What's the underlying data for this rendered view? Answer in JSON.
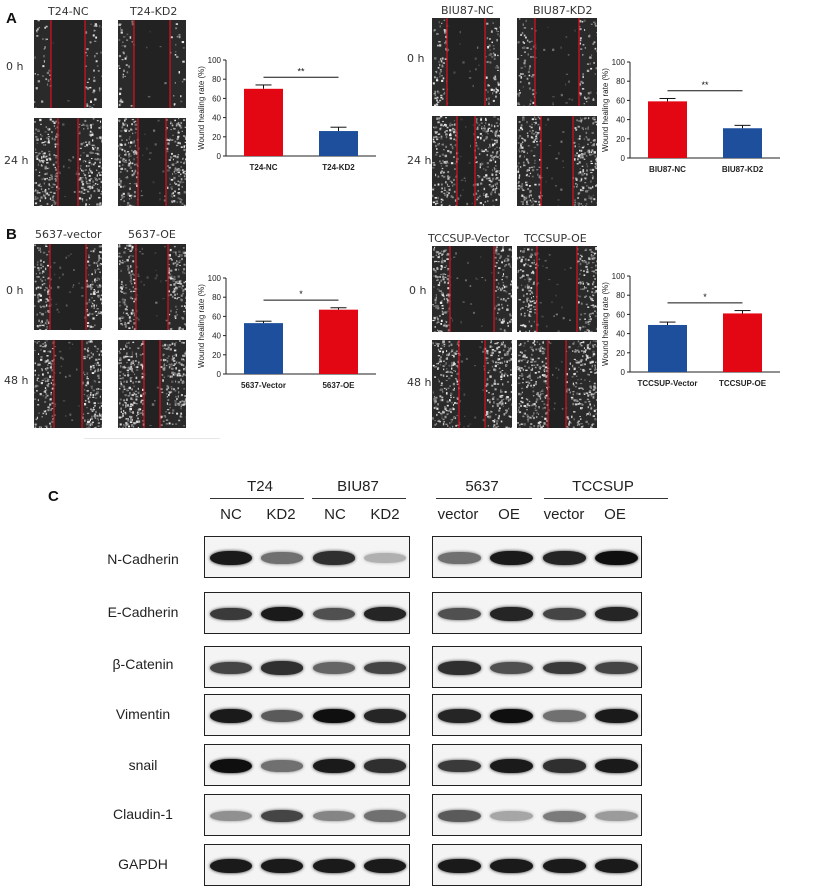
{
  "panels": {
    "a": "A",
    "b": "B",
    "c": "C"
  },
  "images": {
    "t24_nc": "T24-NC",
    "t24_kd2": "T24-KD2",
    "biu87_nc": "BIU87-NC",
    "biu87_kd2": "BIU87-KD2",
    "p5637_vector": "5637-vector",
    "p5637_oe": "5637-OE",
    "tccsup_vector": "TCCSUP-Vector",
    "tccsup_oe": "TCCSUP-OE"
  },
  "times": {
    "t0": "0 h",
    "t24": "24 h",
    "t48": "48 h"
  },
  "colors": {
    "red": "#e30613",
    "blue": "#1d4f9c",
    "axis": "#222222"
  },
  "chart_data": [
    {
      "type": "bar",
      "ylabel": "Wound healing rate (%)",
      "ylim": [
        0,
        100
      ],
      "yticks": [
        0,
        20,
        40,
        60,
        80,
        100
      ],
      "categories": [
        "T24-NC",
        "T24-KD2"
      ],
      "values": [
        70,
        26
      ],
      "errors": [
        4,
        4
      ],
      "bar_colors": [
        "#e30613",
        "#1d4f9c"
      ],
      "significance": "**"
    },
    {
      "type": "bar",
      "ylabel": "Wound healing rate (%)",
      "ylim": [
        0,
        100
      ],
      "yticks": [
        0,
        20,
        40,
        60,
        80,
        100
      ],
      "categories": [
        "BIU87-NC",
        "BIU87-KD2"
      ],
      "values": [
        59,
        31
      ],
      "errors": [
        3,
        3
      ],
      "bar_colors": [
        "#e30613",
        "#1d4f9c"
      ],
      "significance": "**"
    },
    {
      "type": "bar",
      "ylabel": "Wound healing rate (%)",
      "ylim": [
        0,
        100
      ],
      "yticks": [
        0,
        20,
        40,
        60,
        80,
        100
      ],
      "categories": [
        "5637-Vector",
        "5637-OE"
      ],
      "values": [
        53,
        67
      ],
      "errors": [
        2,
        2
      ],
      "bar_colors": [
        "#1d4f9c",
        "#e30613"
      ],
      "significance": "*"
    },
    {
      "type": "bar",
      "ylabel": "Wound healing rate (%)",
      "ylim": [
        0,
        100
      ],
      "yticks": [
        0,
        20,
        40,
        60,
        80,
        100
      ],
      "categories": [
        "TCCSUP-Vector",
        "TCCSUP-OE"
      ],
      "values": [
        49,
        61
      ],
      "errors": [
        3,
        3
      ],
      "bar_colors": [
        "#1d4f9c",
        "#e30613"
      ],
      "significance": "*"
    }
  ],
  "blot": {
    "groups": {
      "t24": "T24",
      "biu87": "BIU87",
      "p5637": "5637",
      "tccsup": "TCCSUP"
    },
    "lanes": {
      "nc1": "NC",
      "kd1": "KD2",
      "nc2": "NC",
      "kd2": "KD2",
      "vec1": "vector",
      "oe1": "OE",
      "vec2": "vector",
      "oe2": "OE"
    },
    "proteins": [
      "N-Cadherin",
      "E-Cadherin",
      "β-Catenin",
      "Vimentin",
      "snail",
      "Claudin-1",
      "GAPDH"
    ]
  }
}
